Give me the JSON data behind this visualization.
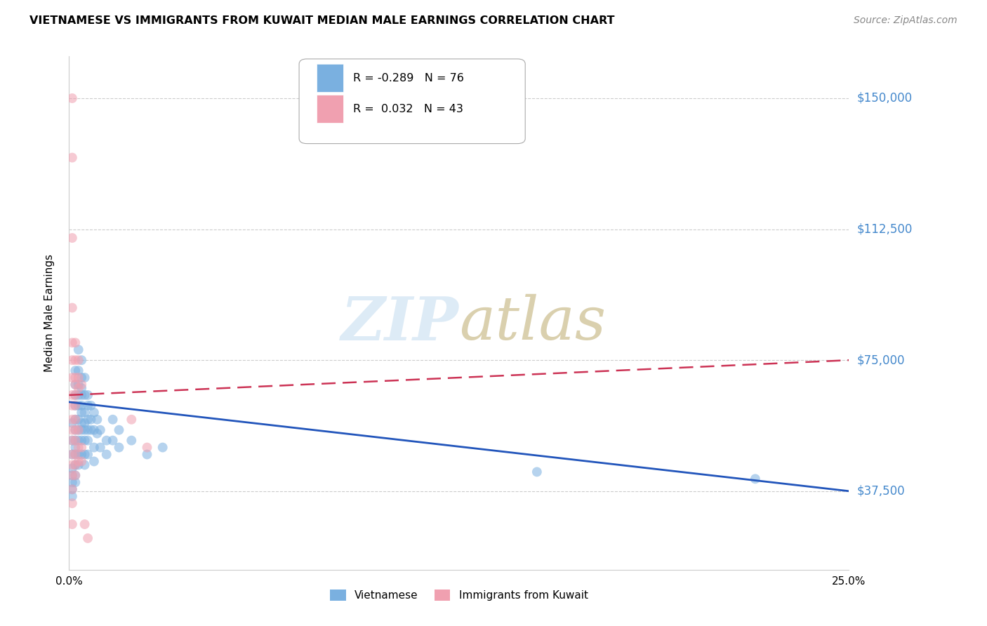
{
  "title": "VIETNAMESE VS IMMIGRANTS FROM KUWAIT MEDIAN MALE EARNINGS CORRELATION CHART",
  "source": "Source: ZipAtlas.com",
  "ylabel": "Median Male Earnings",
  "ytick_labels": [
    "$150,000",
    "$112,500",
    "$75,000",
    "$37,500"
  ],
  "ytick_values": [
    150000,
    112500,
    75000,
    37500
  ],
  "ymin": 15000,
  "ymax": 162000,
  "xmin": 0.0,
  "xmax": 0.25,
  "watermark": "ZIPatlas",
  "legend_s1": "R = -0.289   N = 76",
  "legend_s2": "R =  0.032   N = 43",
  "vietnamese_color": "#7ab0e0",
  "kuwait_color": "#f0a0b0",
  "trendline_blue_color": "#2255bb",
  "trendline_pink_color": "#cc3355",
  "grid_color": "#cccccc",
  "right_axis_color": "#4488cc",
  "viet_trendline": [
    [
      0.0,
      63000
    ],
    [
      0.25,
      37500
    ]
  ],
  "kuwait_trendline": [
    [
      0.0,
      65000
    ],
    [
      0.25,
      75000
    ]
  ],
  "vietnamese_data": [
    [
      0.001,
      57000
    ],
    [
      0.001,
      52000
    ],
    [
      0.001,
      48000
    ],
    [
      0.001,
      44000
    ],
    [
      0.001,
      42000
    ],
    [
      0.001,
      40000
    ],
    [
      0.001,
      38000
    ],
    [
      0.001,
      36000
    ],
    [
      0.002,
      72000
    ],
    [
      0.002,
      68000
    ],
    [
      0.002,
      65000
    ],
    [
      0.002,
      62000
    ],
    [
      0.002,
      58000
    ],
    [
      0.002,
      55000
    ],
    [
      0.002,
      52000
    ],
    [
      0.002,
      50000
    ],
    [
      0.002,
      48000
    ],
    [
      0.002,
      45000
    ],
    [
      0.002,
      42000
    ],
    [
      0.002,
      40000
    ],
    [
      0.003,
      78000
    ],
    [
      0.003,
      72000
    ],
    [
      0.003,
      68000
    ],
    [
      0.003,
      65000
    ],
    [
      0.003,
      62000
    ],
    [
      0.003,
      58000
    ],
    [
      0.003,
      55000
    ],
    [
      0.003,
      52000
    ],
    [
      0.003,
      48000
    ],
    [
      0.003,
      45000
    ],
    [
      0.004,
      75000
    ],
    [
      0.004,
      70000
    ],
    [
      0.004,
      67000
    ],
    [
      0.004,
      65000
    ],
    [
      0.004,
      62000
    ],
    [
      0.004,
      60000
    ],
    [
      0.004,
      57000
    ],
    [
      0.004,
      55000
    ],
    [
      0.004,
      52000
    ],
    [
      0.004,
      48000
    ],
    [
      0.005,
      70000
    ],
    [
      0.005,
      65000
    ],
    [
      0.005,
      60000
    ],
    [
      0.005,
      57000
    ],
    [
      0.005,
      55000
    ],
    [
      0.005,
      52000
    ],
    [
      0.005,
      48000
    ],
    [
      0.005,
      45000
    ],
    [
      0.006,
      65000
    ],
    [
      0.006,
      62000
    ],
    [
      0.006,
      58000
    ],
    [
      0.006,
      55000
    ],
    [
      0.006,
      52000
    ],
    [
      0.006,
      48000
    ],
    [
      0.007,
      62000
    ],
    [
      0.007,
      58000
    ],
    [
      0.007,
      55000
    ],
    [
      0.008,
      60000
    ],
    [
      0.008,
      55000
    ],
    [
      0.008,
      50000
    ],
    [
      0.008,
      46000
    ],
    [
      0.009,
      58000
    ],
    [
      0.009,
      54000
    ],
    [
      0.01,
      55000
    ],
    [
      0.01,
      50000
    ],
    [
      0.012,
      52000
    ],
    [
      0.012,
      48000
    ],
    [
      0.014,
      58000
    ],
    [
      0.014,
      52000
    ],
    [
      0.016,
      55000
    ],
    [
      0.016,
      50000
    ],
    [
      0.02,
      52000
    ],
    [
      0.025,
      48000
    ],
    [
      0.03,
      50000
    ],
    [
      0.15,
      43000
    ],
    [
      0.22,
      41000
    ]
  ],
  "kuwait_data": [
    [
      0.001,
      150000
    ],
    [
      0.001,
      133000
    ],
    [
      0.001,
      110000
    ],
    [
      0.001,
      90000
    ],
    [
      0.001,
      80000
    ],
    [
      0.001,
      75000
    ],
    [
      0.001,
      70000
    ],
    [
      0.001,
      65000
    ],
    [
      0.001,
      62000
    ],
    [
      0.001,
      58000
    ],
    [
      0.001,
      55000
    ],
    [
      0.001,
      52000
    ],
    [
      0.001,
      48000
    ],
    [
      0.001,
      45000
    ],
    [
      0.001,
      42000
    ],
    [
      0.001,
      38000
    ],
    [
      0.001,
      34000
    ],
    [
      0.001,
      28000
    ],
    [
      0.002,
      80000
    ],
    [
      0.002,
      75000
    ],
    [
      0.002,
      70000
    ],
    [
      0.002,
      68000
    ],
    [
      0.002,
      65000
    ],
    [
      0.002,
      62000
    ],
    [
      0.002,
      58000
    ],
    [
      0.002,
      55000
    ],
    [
      0.002,
      52000
    ],
    [
      0.002,
      48000
    ],
    [
      0.002,
      45000
    ],
    [
      0.002,
      42000
    ],
    [
      0.003,
      75000
    ],
    [
      0.003,
      70000
    ],
    [
      0.003,
      67000
    ],
    [
      0.003,
      55000
    ],
    [
      0.003,
      50000
    ],
    [
      0.003,
      46000
    ],
    [
      0.004,
      68000
    ],
    [
      0.004,
      50000
    ],
    [
      0.004,
      46000
    ],
    [
      0.005,
      28000
    ],
    [
      0.006,
      24000
    ],
    [
      0.02,
      58000
    ],
    [
      0.025,
      50000
    ]
  ]
}
